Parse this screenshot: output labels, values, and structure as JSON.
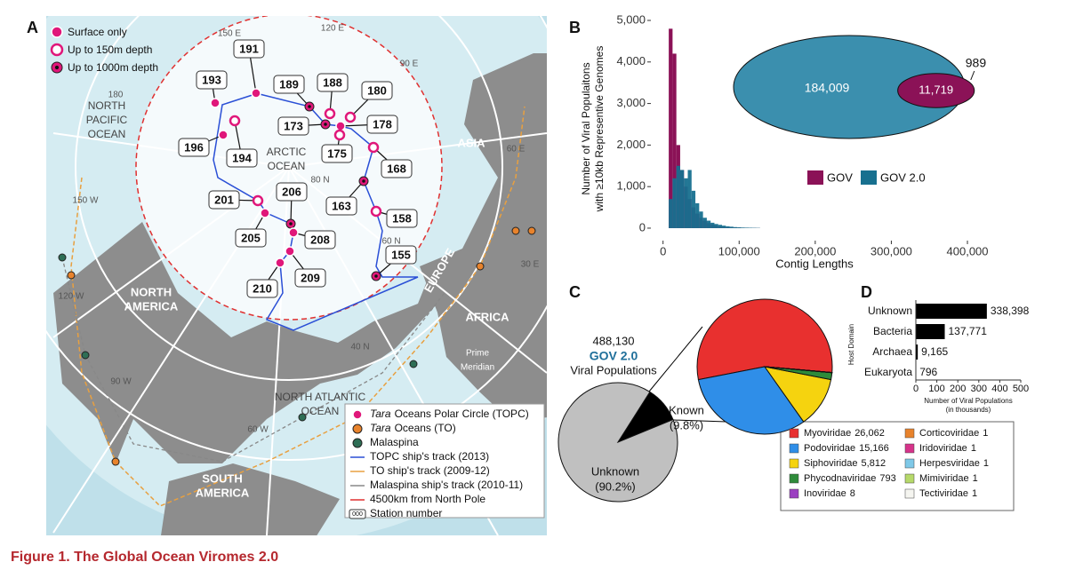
{
  "caption": "Figure 1.  The Global Ocean Viromes 2.0",
  "panel_a": {
    "label": "A",
    "depth_legend": [
      "Surface only",
      "Up to 150m depth",
      "Up to 1000m depth"
    ],
    "stations": [
      {
        "number": 191,
        "marker": 0
      },
      {
        "number": 193,
        "marker": 0
      },
      {
        "number": 189,
        "marker": 2
      },
      {
        "number": 188,
        "marker": 1
      },
      {
        "number": 180,
        "marker": 1
      },
      {
        "number": 173,
        "marker": 2
      },
      {
        "number": 178,
        "marker": 0
      },
      {
        "number": 196,
        "marker": 0
      },
      {
        "number": 194,
        "marker": 1
      },
      {
        "number": 175,
        "marker": 1
      },
      {
        "number": 168,
        "marker": 1
      },
      {
        "number": 201,
        "marker": 1
      },
      {
        "number": 206,
        "marker": 2
      },
      {
        "number": 163,
        "marker": 2
      },
      {
        "number": 205,
        "marker": 0
      },
      {
        "number": 208,
        "marker": 0
      },
      {
        "number": 158,
        "marker": 1
      },
      {
        "number": 155,
        "marker": 2
      },
      {
        "number": 209,
        "marker": 0
      },
      {
        "number": 210,
        "marker": 0
      }
    ],
    "places": [
      [
        "NORTH",
        "PACIFIC",
        "OCEAN"
      ],
      [
        "ARCTIC",
        "OCEAN"
      ],
      [
        "NORTH",
        "AMERICA"
      ],
      [
        "ASIA"
      ],
      [
        "EUROPE"
      ],
      [
        "AFRICA"
      ],
      [
        "NORTH ATLANTIC",
        "OCEAN"
      ],
      [
        "SOUTH",
        "AMERICA"
      ],
      [
        "Prime",
        "Meridian"
      ]
    ],
    "grid_labels": [
      "150 E",
      "120 E",
      "90 E",
      "60 E",
      "30 E",
      "180",
      "150 W",
      "120 W",
      "90 W",
      "60 W",
      "80 N",
      "60 N",
      "40 N"
    ],
    "legend": [
      {
        "italic": "Tara",
        "text": "Oceans Polar Circle (TOPC)"
      },
      {
        "italic": "Tara",
        "text": "Oceans (TO)"
      },
      {
        "text": "Malaspina"
      },
      {
        "text": "TOPC ship's track (2013)"
      },
      {
        "text": "TO ship's track (2009-12)"
      },
      {
        "text": "Malaspina ship's track (2010-11)"
      },
      {
        "text": "4500km from North Pole"
      },
      {
        "icon": "000",
        "text": "Station number"
      }
    ]
  },
  "chart_data": [
    {
      "type": "histogram",
      "panel_label": "B",
      "xlabel": "Contig Lengths",
      "ylabel": [
        "Number of Viral Populaitons",
        "with ≥10kb Representive Genomes"
      ],
      "bins": [
        7500,
        12500,
        17500,
        22500,
        27500,
        32500,
        37500,
        42500,
        47500,
        52500,
        57500,
        62500,
        67500,
        72500,
        77500,
        82500,
        87500,
        92500,
        97500,
        102500,
        107500,
        112500,
        117500,
        122500,
        127500
      ],
      "series": [
        {
          "name": "GOV",
          "color": "#8b1257",
          "values": [
            4800,
            4200,
            2000,
            1400,
            1000,
            700,
            500,
            350,
            250,
            180,
            120,
            90,
            60,
            40,
            30,
            20,
            15,
            10,
            8,
            6,
            5,
            4,
            3,
            2
          ]
        },
        {
          "name": "GOV 2.0",
          "color": "#17708f",
          "values": [
            700,
            1200,
            1500,
            1400,
            1200,
            1400,
            900,
            600,
            400,
            250,
            180,
            130,
            100,
            80,
            60,
            45,
            35,
            25,
            20,
            15,
            12,
            10,
            8,
            6
          ]
        }
      ],
      "xlim": [
        -16000,
        414000
      ],
      "ylim": [
        -300,
        5000
      ],
      "xticks": [
        0,
        {
          "value": 100000,
          "label": "100,000"
        },
        {
          "value": 200000,
          "label": "200,000"
        },
        {
          "value": 300000,
          "label": "300,000"
        },
        {
          "value": 400000,
          "label": "400,000"
        }
      ],
      "yticks": [
        0,
        {
          "value": 1000,
          "label": "1,000"
        },
        {
          "value": 2000,
          "label": "2,000"
        },
        {
          "value": 3000,
          "label": "3,000"
        },
        {
          "value": 4000,
          "label": "4,000"
        },
        {
          "value": 5000,
          "label": "5,000"
        }
      ],
      "inset": {
        "values": [
          184009,
          11719,
          989
        ],
        "value_labels": [
          "184,009",
          "11,719",
          "989"
        ]
      }
    },
    {
      "type": "pie",
      "panel_label": "C",
      "categories": [
        "Known",
        "Unknown"
      ],
      "values": [
        9.8,
        90.2
      ],
      "value_labels": [
        "(9.8%)",
        "(90.2%)"
      ],
      "colors": [
        "#000000",
        "#c0c0c0"
      ],
      "total": 488130,
      "total_label": "488,130",
      "annotations": [
        "GOV 2.0",
        "Viral Populations"
      ]
    },
    {
      "type": "pie",
      "categories": [
        "Myoviridae",
        "Podoviridae",
        "Siphoviridae",
        "Phycodnaviridae",
        "Inoviridae",
        "Corticoviridae",
        "Iridoviridae",
        "Herpesviridae",
        "Mimiviridae",
        "Tectiviridae"
      ],
      "values": [
        26062,
        15166,
        5812,
        793,
        8,
        1,
        1,
        1,
        1,
        1
      ],
      "value_labels": [
        "26,062",
        "15,166",
        "5,812",
        "793",
        "8",
        "1",
        "1",
        "1",
        "1",
        "1"
      ],
      "colors": [
        "#e8302f",
        "#2f8ee8",
        "#f5d30f",
        "#2e8b3a",
        "#9b3fc1",
        "#e8832c",
        "#d6338a",
        "#7fc9e8",
        "#b6d96a",
        "#f5f5f0"
      ]
    },
    {
      "type": "barh",
      "panel_label": "D",
      "categories": [
        "Unknown",
        "Bacteria",
        "Archaea",
        "Eukaryota"
      ],
      "values": [
        338.398,
        137.771,
        9.165,
        0.796
      ],
      "value_labels": [
        "338,398",
        "137,771",
        "9,165",
        "796"
      ],
      "color": "#000000",
      "xlabel": [
        "Number of Viral Populations",
        "(in thousands)"
      ],
      "ylabel": "Host Domain",
      "xlim": [
        0,
        500
      ],
      "xticks": [
        0,
        100,
        200,
        300,
        400,
        500
      ]
    }
  ]
}
